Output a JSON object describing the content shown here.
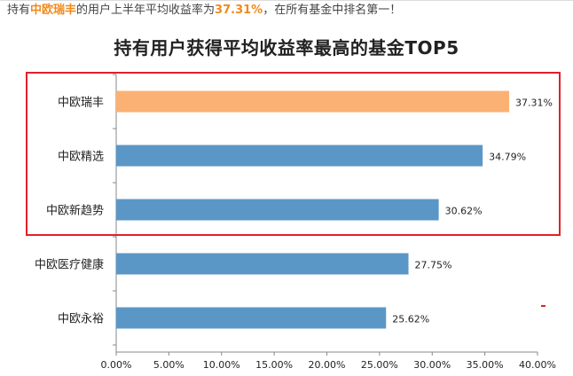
{
  "caption": {
    "prefix": "持有",
    "fund": "中欧瑞丰",
    "middle": "的用户上半年平均收益率为",
    "rate": "37.31%",
    "suffix": "，在所有基金中排名第一！"
  },
  "colors": {
    "highlight_bar": "#fbb173",
    "normal_bar": "#5b97c6",
    "frame": "#e0212a",
    "caption_highlight": "#f08a1c"
  },
  "chart_data": {
    "type": "bar",
    "orientation": "horizontal",
    "title": "持有用户获得平均收益率最高的基金TOP5",
    "categories": [
      "中欧瑞丰",
      "中欧精选",
      "中欧新趋势",
      "中欧医疗健康",
      "中欧永裕"
    ],
    "values": [
      37.31,
      34.79,
      30.62,
      27.75,
      25.62
    ],
    "data_labels": [
      "37.31%",
      "34.79%",
      "30.62%",
      "27.75%",
      "25.62%"
    ],
    "highlighted_category": "中欧瑞丰",
    "boxed_categories": [
      "中欧瑞丰",
      "中欧精选",
      "中欧新趋势"
    ],
    "xlim": [
      0,
      40
    ],
    "x_ticks": [
      "0.00%",
      "5.00%",
      "10.00%",
      "15.00%",
      "20.00%",
      "25.00%",
      "30.00%",
      "35.00%",
      "40.00%"
    ],
    "grid": false
  }
}
